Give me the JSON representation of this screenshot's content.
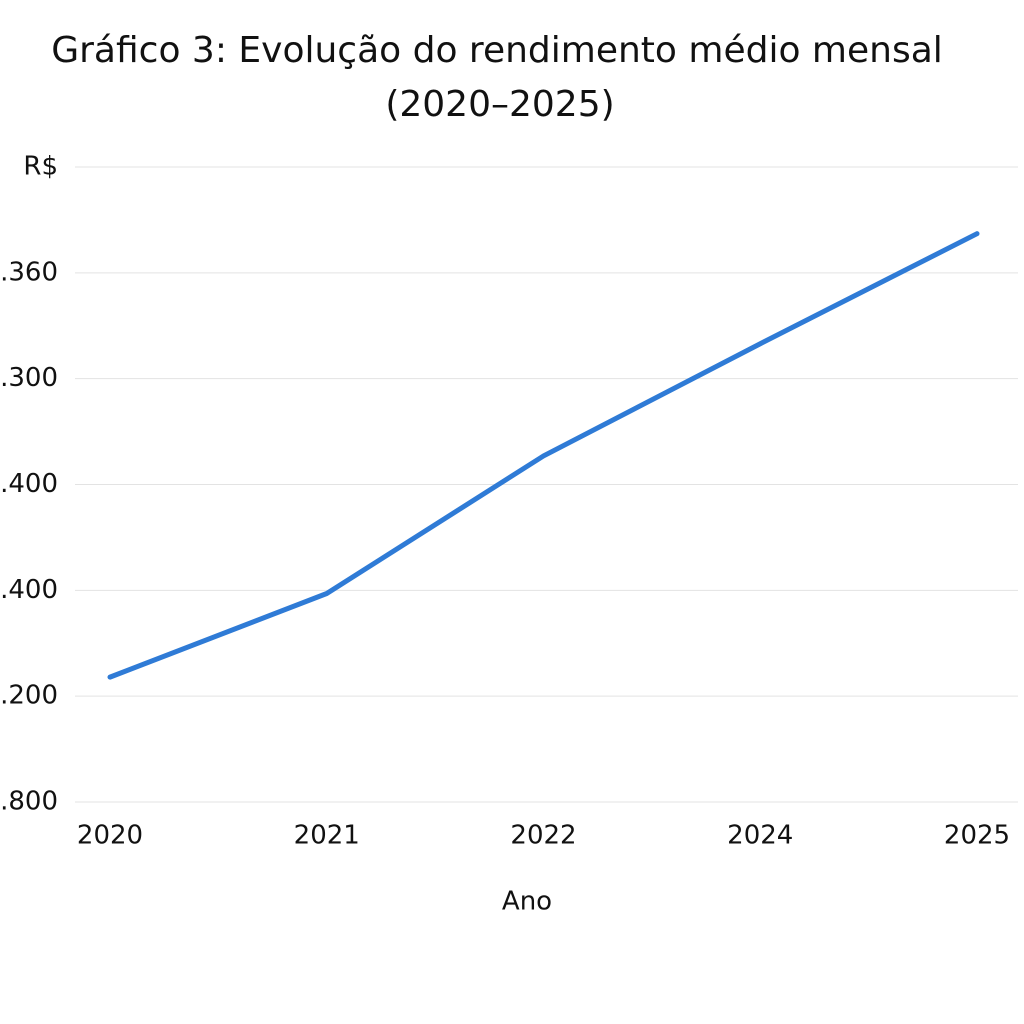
{
  "chart_data": {
    "type": "line",
    "title": [
      "Gráfico 3: Evolução do rendimento médio mensal",
      "(2020–2025)"
    ],
    "x_label": "Ano",
    "categories": [
      "2020",
      "2021",
      "2022",
      "2024",
      "2025"
    ],
    "series": [
      {
        "name": "Rendimento médio mensal",
        "color": "#2f7bd6",
        "values": [
          1.18,
          1.97,
          3.27,
          4.33,
          5.37
        ]
      }
    ],
    "ylim": [
      0,
      6
    ],
    "yticks": [
      {
        "value": 0,
        "label": ".800"
      },
      {
        "value": 1,
        "label": ".200"
      },
      {
        "value": 2,
        "label": ".400"
      },
      {
        "value": 3,
        "label": ".400"
      },
      {
        "value": 4,
        "label": ".300"
      },
      {
        "value": 5,
        "label": ".360"
      },
      {
        "value": 6,
        "label": "R$"
      }
    ],
    "grid": true
  }
}
